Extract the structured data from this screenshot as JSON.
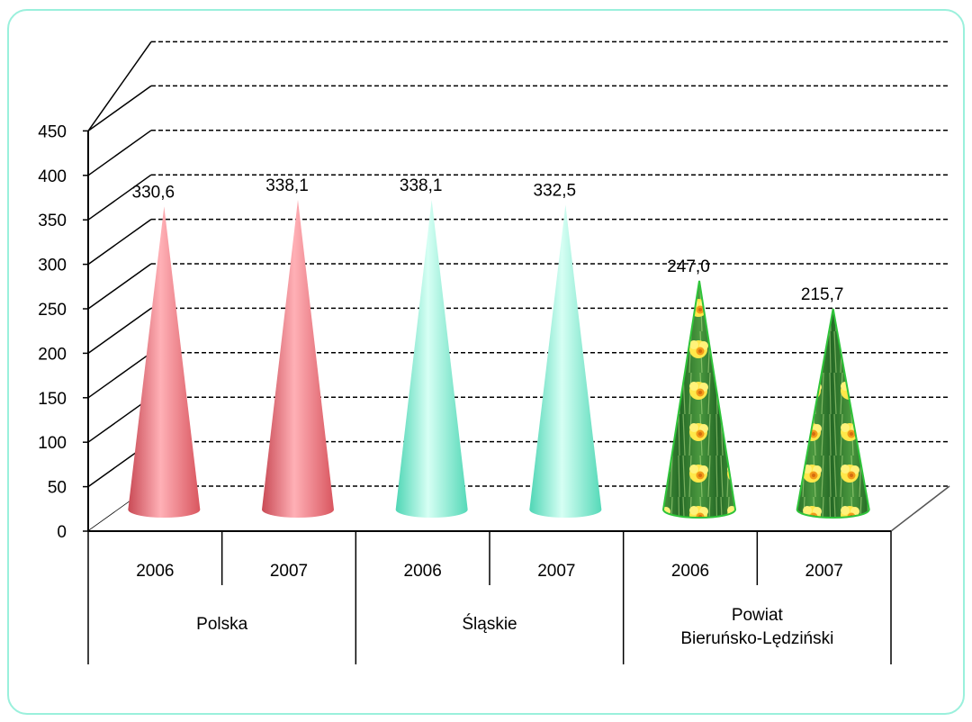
{
  "chart_data": {
    "type": "bar",
    "title": "",
    "ylim": [
      0,
      450
    ],
    "yticks": [
      0,
      50,
      100,
      150,
      200,
      250,
      300,
      350,
      400,
      450
    ],
    "categories": [
      "2006",
      "2007",
      "2006",
      "2007",
      "2006",
      "2007"
    ],
    "groups": [
      {
        "label_lines": [
          "Polska"
        ],
        "color": "#f07b84"
      },
      {
        "label_lines": [
          "Śląskie"
        ],
        "color": "#7ff3d5"
      },
      {
        "label_lines": [
          "Powiat",
          "Bieruńsko-Lędziński"
        ],
        "color": "#3c8a35"
      }
    ],
    "values": [
      330.6,
      338.1,
      338.1,
      332.5,
      247.0,
      215.7
    ],
    "value_labels": [
      "330,6",
      "338,1",
      "338,1",
      "332,5",
      "247,0",
      "215,7"
    ],
    "grid": true,
    "grid_style": "dashed",
    "shape": "cone"
  }
}
